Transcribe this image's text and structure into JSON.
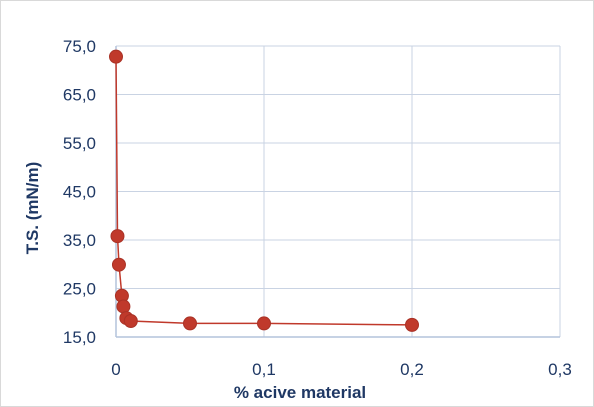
{
  "chart_data": {
    "type": "scatter",
    "title": "",
    "xlabel": "% acive material",
    "ylabel": "T.S. (mN/m)",
    "xlim": [
      0,
      0.3
    ],
    "ylim": [
      15,
      75
    ],
    "x_ticks": [
      "0",
      "0,1",
      "0,2",
      "0,3"
    ],
    "y_ticks": [
      "15,0",
      "25,0",
      "35,0",
      "45,0",
      "55,0",
      "65,0",
      "75,0"
    ],
    "grid": true,
    "legend": "none",
    "marker_color": "#c0392b",
    "line_color": "#c0392b",
    "series": [
      {
        "x": [
          0,
          0.001,
          0.002,
          0.004,
          0.005,
          0.007,
          0.01,
          0.05,
          0.1,
          0.2
        ],
        "y": [
          72.8,
          35.8,
          29.9,
          23.5,
          21.3,
          18.9,
          18.3,
          17.8,
          17.8,
          17.5
        ]
      }
    ]
  }
}
